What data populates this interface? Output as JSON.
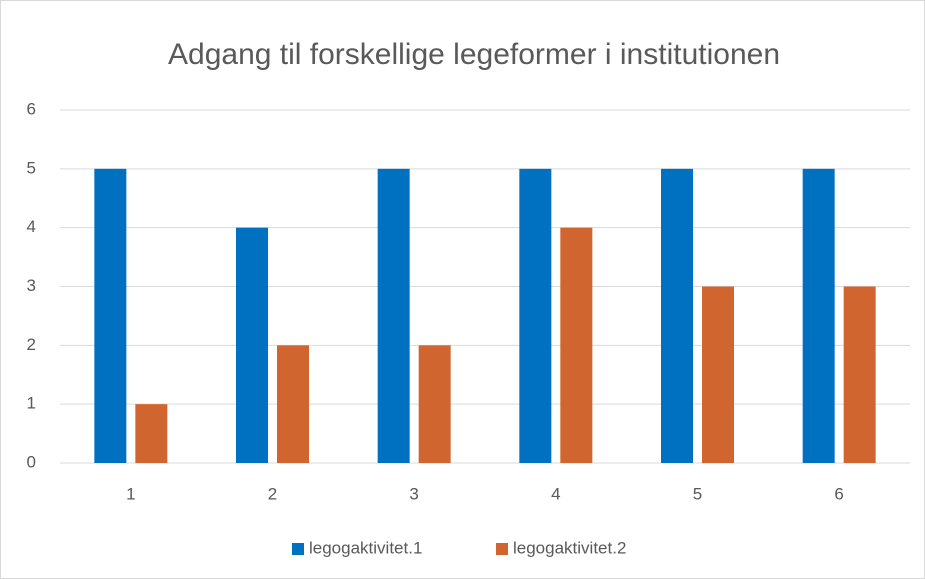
{
  "chart_data": {
    "type": "bar",
    "title": "Adgang til forskellige legeformer i institutionen",
    "categories": [
      "1",
      "2",
      "3",
      "4",
      "5",
      "6"
    ],
    "series": [
      {
        "name": "legogaktivitet.1",
        "color": "#0070c0",
        "values": [
          5,
          4,
          5,
          5,
          5,
          5
        ]
      },
      {
        "name": "legogaktivitet.2",
        "color": "#d0652f",
        "values": [
          1,
          2,
          2,
          4,
          3,
          3
        ]
      }
    ],
    "ylim": [
      0,
      6
    ],
    "yticks": [
      0,
      1,
      2,
      3,
      4,
      5,
      6
    ],
    "grid": true,
    "legend": "bottom"
  }
}
